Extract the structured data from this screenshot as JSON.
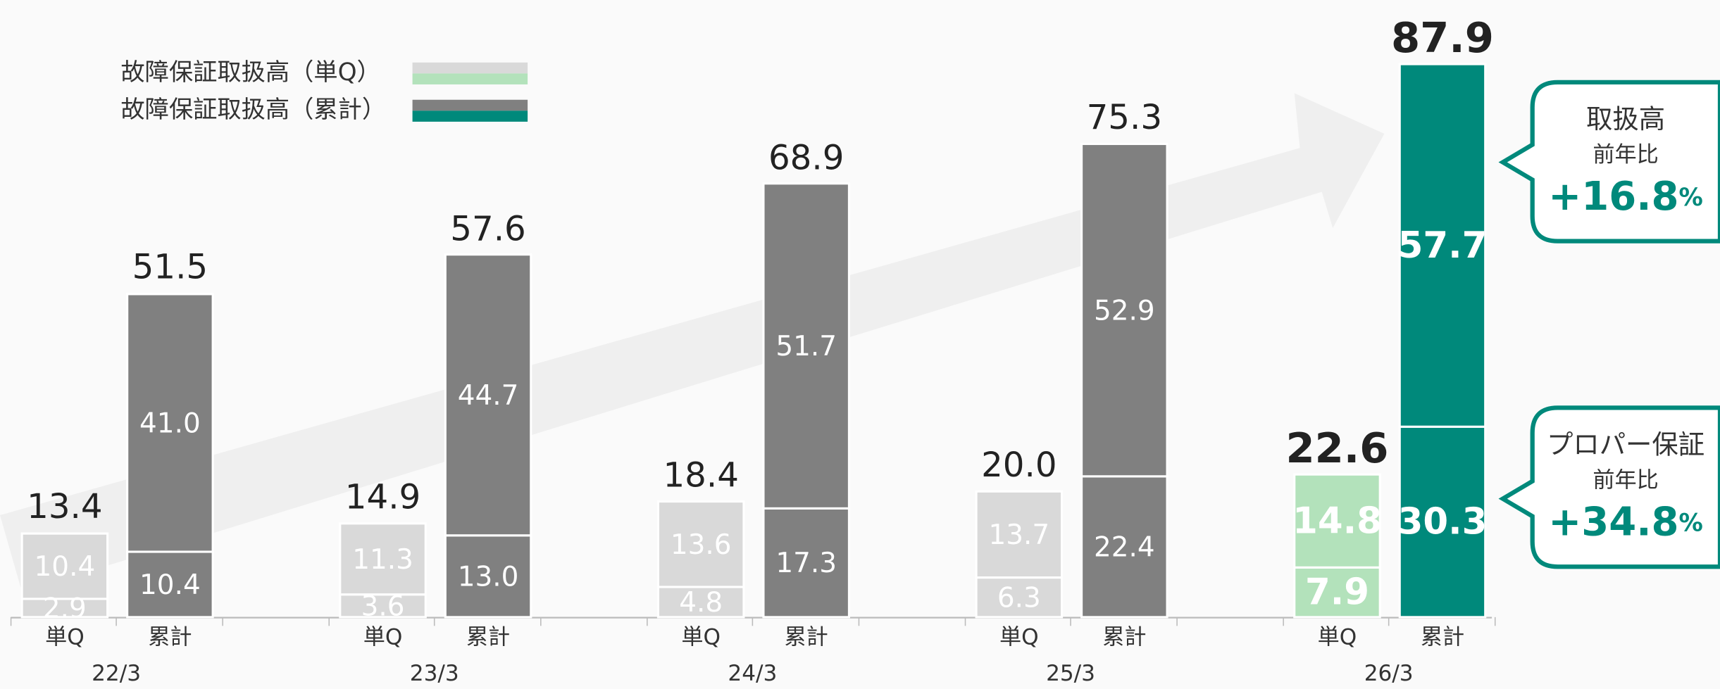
{
  "chart_data": {
    "type": "bar",
    "stacked": true,
    "categories": [
      "22/3",
      "23/3",
      "24/3",
      "25/3",
      "26/3"
    ],
    "highlight_index": 4,
    "ylim": [
      0,
      90
    ],
    "series": [
      {
        "name": "故障保証取扱高（単Q）",
        "tick": "単Q",
        "color": "#d9d9d9",
        "highlight_color": "#b3e2bb",
        "lower": [
          2.9,
          3.6,
          4.8,
          6.3,
          7.9
        ],
        "lower_labels": [
          "2.9",
          "3.6",
          "4.8",
          "6.3",
          "7.9"
        ],
        "upper": [
          10.4,
          11.3,
          13.6,
          13.7,
          14.8
        ],
        "upper_labels": [
          "10.4",
          "11.3",
          "13.6",
          "13.7",
          "14.8"
        ],
        "totals": [
          13.4,
          14.9,
          18.4,
          20.0,
          22.6
        ],
        "total_labels": [
          "13.4",
          "14.9",
          "18.4",
          "20.0",
          "22.6"
        ]
      },
      {
        "name": "故障保証取扱高（累計）",
        "tick": "累計",
        "color": "#808080",
        "highlight_color": "#00897b",
        "lower": [
          10.4,
          13.0,
          17.3,
          22.4,
          30.3
        ],
        "lower_labels": [
          "10.4",
          "13.0",
          "17.3",
          "22.4",
          "30.3"
        ],
        "upper": [
          41.0,
          44.7,
          51.7,
          52.9,
          57.7
        ],
        "upper_labels": [
          "41.0",
          "44.7",
          "51.7",
          "52.9",
          "57.7"
        ],
        "totals": [
          51.5,
          57.6,
          68.9,
          75.3,
          87.9
        ],
        "total_labels": [
          "51.5",
          "57.6",
          "68.9",
          "75.3",
          "87.9"
        ]
      }
    ],
    "annotations": [
      {
        "title": "取扱高",
        "sub": "前年比",
        "value": "+16.8",
        "unit": "%"
      },
      {
        "title": "プロパー保証",
        "sub": "前年比",
        "value": "+34.8",
        "unit": "%"
      }
    ]
  }
}
